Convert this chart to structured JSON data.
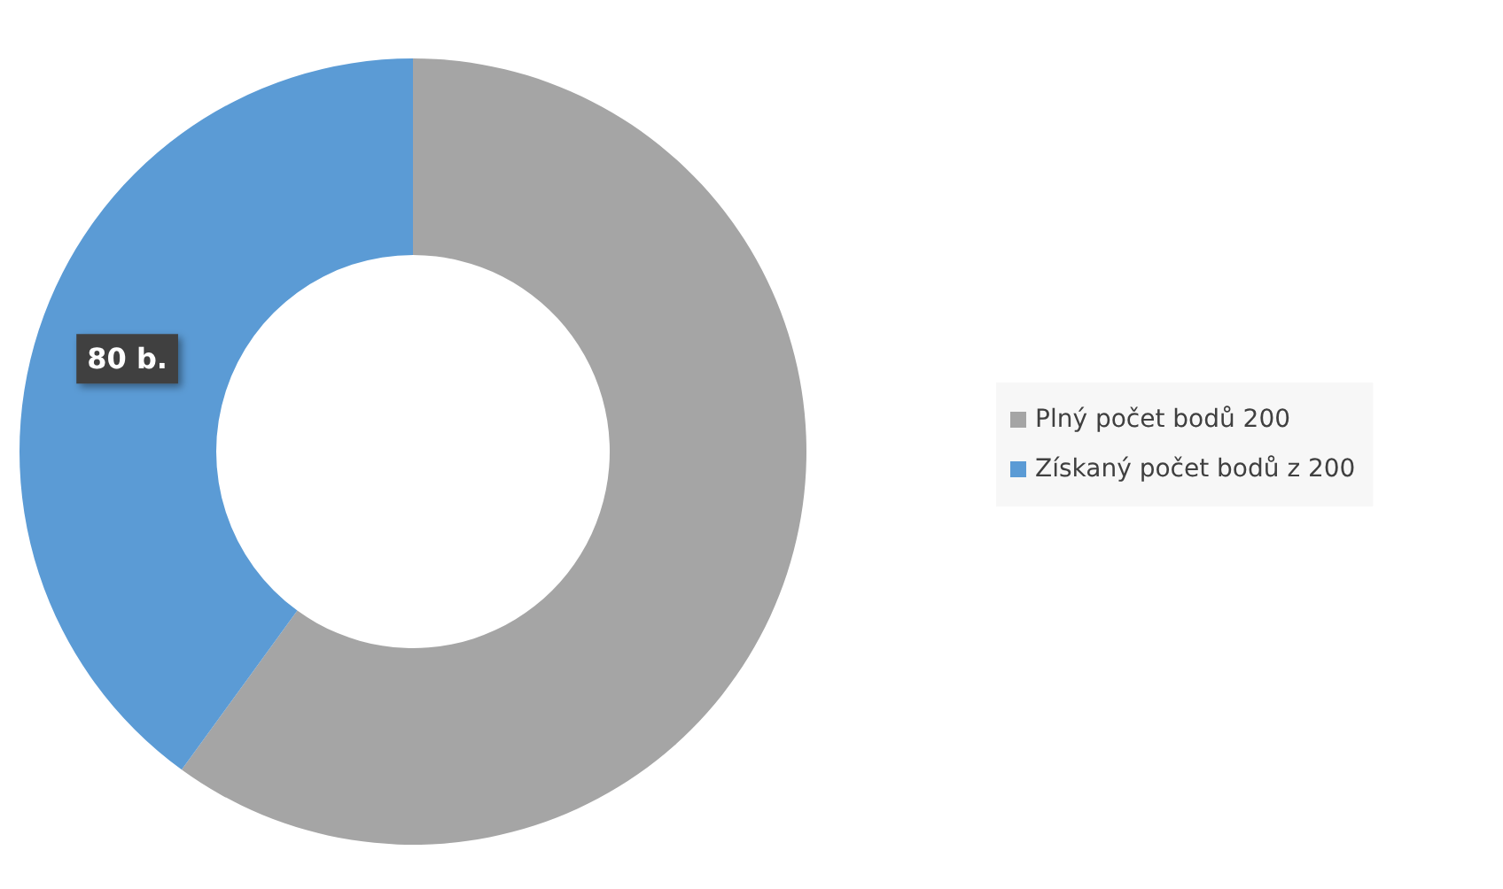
{
  "chart_data": {
    "type": "donut",
    "categories": [
      "Plný počet bodů 200",
      "Získaný počet bodů z 200"
    ],
    "values": [
      120,
      80
    ],
    "colors": [
      "#a5a5a5",
      "#5b9bd5"
    ],
    "value_labels": [
      null,
      "80 b."
    ],
    "legend": "right"
  }
}
